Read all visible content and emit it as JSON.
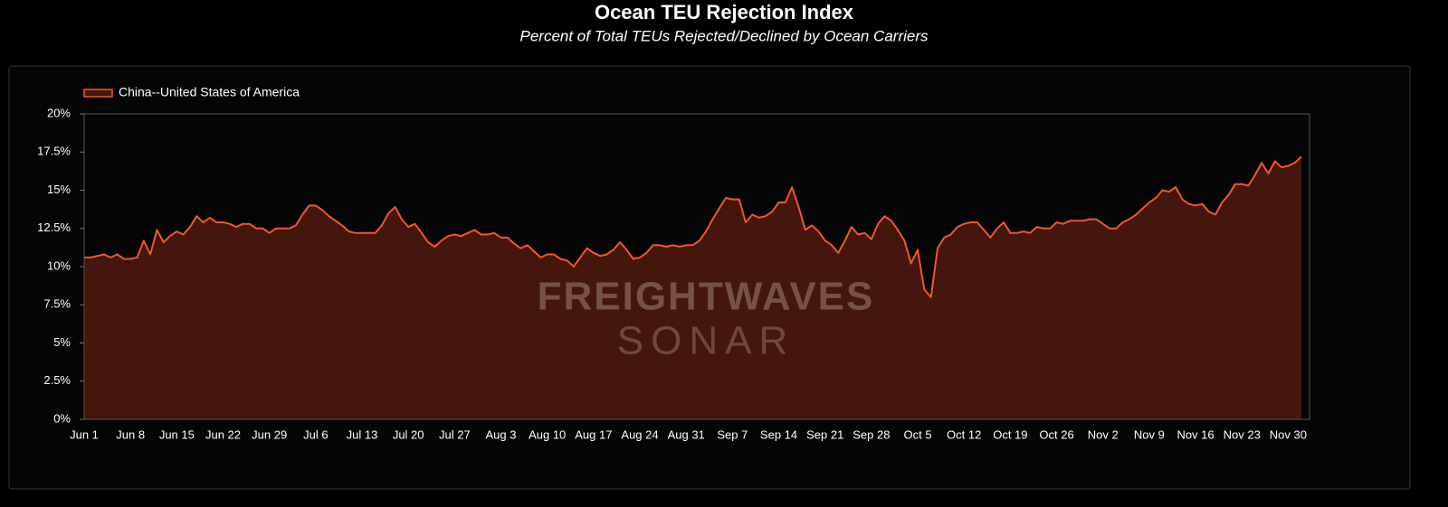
{
  "chart_data": {
    "type": "area",
    "title": "Ocean TEU Rejection Index",
    "subtitle": "Percent of Total TEUs Rejected/Declined by Ocean Carriers",
    "watermark": [
      "FREIGHTWAVES",
      "SONAR"
    ],
    "legend": "top-left",
    "categories": [
      "Jun 1",
      "Jun 2",
      "Jun 3",
      "Jun 4",
      "Jun 5",
      "Jun 6",
      "Jun 7",
      "Jun 8",
      "Jun 9",
      "Jun 10",
      "Jun 11",
      "Jun 12",
      "Jun 13",
      "Jun 14",
      "Jun 15",
      "Jun 16",
      "Jun 17",
      "Jun 18",
      "Jun 19",
      "Jun 20",
      "Jun 21",
      "Jun 22",
      "Jun 23",
      "Jun 24",
      "Jun 25",
      "Jun 26",
      "Jun 27",
      "Jun 28",
      "Jun 29",
      "Jun 30",
      "Jul 1",
      "Jul 2",
      "Jul 3",
      "Jul 4",
      "Jul 5",
      "Jul 6",
      "Jul 7",
      "Jul 8",
      "Jul 9",
      "Jul 10",
      "Jul 11",
      "Jul 12",
      "Jul 13",
      "Jul 14",
      "Jul 15",
      "Jul 16",
      "Jul 17",
      "Jul 18",
      "Jul 19",
      "Jul 20",
      "Jul 21",
      "Jul 22",
      "Jul 23",
      "Jul 24",
      "Jul 25",
      "Jul 26",
      "Jul 27",
      "Jul 28",
      "Jul 29",
      "Jul 30",
      "Jul 31",
      "Aug 1",
      "Aug 2",
      "Aug 3",
      "Aug 4",
      "Aug 5",
      "Aug 6",
      "Aug 7",
      "Aug 8",
      "Aug 9",
      "Aug 10",
      "Aug 11",
      "Aug 12",
      "Aug 13",
      "Aug 14",
      "Aug 15",
      "Aug 16",
      "Aug 17",
      "Aug 18",
      "Aug 19",
      "Aug 20",
      "Aug 21",
      "Aug 22",
      "Aug 23",
      "Aug 24",
      "Aug 25",
      "Aug 26",
      "Aug 27",
      "Aug 28",
      "Aug 29",
      "Aug 30",
      "Aug 31",
      "Sep 1",
      "Sep 2",
      "Sep 3",
      "Sep 4",
      "Sep 5",
      "Sep 6",
      "Sep 7",
      "Sep 8",
      "Sep 9",
      "Sep 10",
      "Sep 11",
      "Sep 12",
      "Sep 13",
      "Sep 14",
      "Sep 15",
      "Sep 16",
      "Sep 17",
      "Sep 18",
      "Sep 19",
      "Sep 20",
      "Sep 21",
      "Sep 22",
      "Sep 23",
      "Sep 24",
      "Sep 25",
      "Sep 26",
      "Sep 27",
      "Sep 28",
      "Sep 29",
      "Sep 30",
      "Oct 1",
      "Oct 2",
      "Oct 3",
      "Oct 4",
      "Oct 5",
      "Oct 6",
      "Oct 7",
      "Oct 8",
      "Oct 9",
      "Oct 10",
      "Oct 11",
      "Oct 12",
      "Oct 13",
      "Oct 14",
      "Oct 15",
      "Oct 16",
      "Oct 17",
      "Oct 18",
      "Oct 19",
      "Oct 20",
      "Oct 21",
      "Oct 22",
      "Oct 23",
      "Oct 24",
      "Oct 25",
      "Oct 26",
      "Oct 27",
      "Oct 28",
      "Oct 29",
      "Oct 30",
      "Oct 31",
      "Nov 1",
      "Nov 2",
      "Nov 3",
      "Nov 4",
      "Nov 5",
      "Nov 6",
      "Nov 7",
      "Nov 8",
      "Nov 9",
      "Nov 10",
      "Nov 11",
      "Nov 12",
      "Nov 13",
      "Nov 14",
      "Nov 15",
      "Nov 16",
      "Nov 17",
      "Nov 18",
      "Nov 19",
      "Nov 20",
      "Nov 21",
      "Nov 22",
      "Nov 23",
      "Nov 24",
      "Nov 25",
      "Nov 26",
      "Nov 27",
      "Nov 28",
      "Nov 29",
      "Nov 30",
      "Dec 1",
      "Dec 2"
    ],
    "xticks": [
      "Jun 1",
      "Jun 8",
      "Jun 15",
      "Jun 22",
      "Jun 29",
      "Jul 6",
      "Jul 13",
      "Jul 20",
      "Jul 27",
      "Aug 3",
      "Aug 10",
      "Aug 17",
      "Aug 24",
      "Aug 31",
      "Sep 7",
      "Sep 14",
      "Sep 21",
      "Sep 28",
      "Oct 5",
      "Oct 12",
      "Oct 19",
      "Oct 26",
      "Nov 2",
      "Nov 9",
      "Nov 16",
      "Nov 23",
      "Nov 30"
    ],
    "series": [
      {
        "name": "China--United States of America",
        "color": "#f0562c",
        "fill": "#45170c",
        "values": [
          10.6,
          10.6,
          10.7,
          10.8,
          10.6,
          10.8,
          10.5,
          10.5,
          10.6,
          11.7,
          10.8,
          12.4,
          11.6,
          12.0,
          12.3,
          12.1,
          12.6,
          13.3,
          12.9,
          13.2,
          12.9,
          12.9,
          12.8,
          12.6,
          12.8,
          12.8,
          12.5,
          12.5,
          12.2,
          12.5,
          12.5,
          12.5,
          12.7,
          13.4,
          14.0,
          14.0,
          13.7,
          13.3,
          13.0,
          12.7,
          12.3,
          12.2,
          12.2,
          12.2,
          12.2,
          12.7,
          13.5,
          13.9,
          13.1,
          12.6,
          12.8,
          12.2,
          11.6,
          11.3,
          11.7,
          12.0,
          12.1,
          12.0,
          12.2,
          12.4,
          12.1,
          12.1,
          12.2,
          11.9,
          11.9,
          11.5,
          11.2,
          11.4,
          11.0,
          10.6,
          10.8,
          10.8,
          10.5,
          10.4,
          10.0,
          10.6,
          11.2,
          10.9,
          10.7,
          10.8,
          11.1,
          11.6,
          11.1,
          10.5,
          10.6,
          10.9,
          11.4,
          11.4,
          11.3,
          11.4,
          11.3,
          11.4,
          11.4,
          11.7,
          12.3,
          13.1,
          13.8,
          14.5,
          14.4,
          14.4,
          12.9,
          13.4,
          13.2,
          13.3,
          13.6,
          14.2,
          14.2,
          15.2,
          13.9,
          12.4,
          12.7,
          12.3,
          11.7,
          11.4,
          10.9,
          11.7,
          12.6,
          12.1,
          12.2,
          11.8,
          12.8,
          13.3,
          13.0,
          12.4,
          11.7,
          10.2,
          11.1,
          8.5,
          8.0,
          11.2,
          11.9,
          12.1,
          12.6,
          12.8,
          12.9,
          12.9,
          12.4,
          11.9,
          12.5,
          12.9,
          12.2,
          12.2,
          12.3,
          12.2,
          12.6,
          12.5,
          12.5,
          12.9,
          12.8,
          13.0,
          13.0,
          13.0,
          13.1,
          13.1,
          12.8,
          12.5,
          12.5,
          12.9,
          13.1,
          13.4,
          13.8,
          14.2,
          14.5,
          15.0,
          14.9,
          15.2,
          14.4,
          14.1,
          14.0,
          14.1,
          13.6,
          13.4,
          14.2,
          14.7,
          15.4,
          15.4,
          15.3,
          16.0,
          16.8,
          16.1,
          16.9,
          16.5,
          16.6,
          16.8,
          17.2
        ]
      }
    ],
    "ylim": [
      0,
      20
    ],
    "yticks": [
      {
        "value": 0,
        "label": "0%"
      },
      {
        "value": 2.5,
        "label": "2.5%"
      },
      {
        "value": 5,
        "label": "5%"
      },
      {
        "value": 7.5,
        "label": "7.5%"
      },
      {
        "value": 10,
        "label": "10%"
      },
      {
        "value": 12.5,
        "label": "12.5%"
      },
      {
        "value": 15,
        "label": "15%"
      },
      {
        "value": 17.5,
        "label": "17.5%"
      },
      {
        "value": 20,
        "label": "20%"
      }
    ]
  }
}
